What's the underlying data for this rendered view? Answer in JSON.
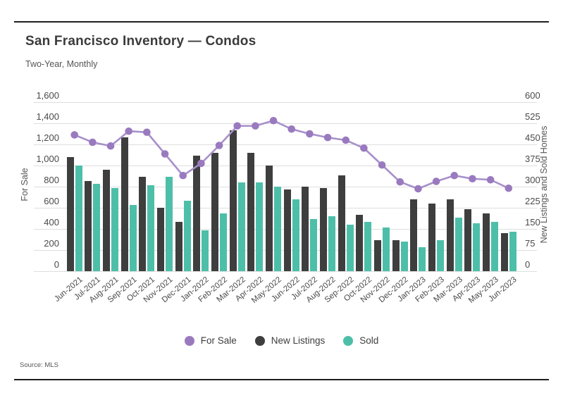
{
  "header": {
    "title": "San Francisco Inventory — Condos",
    "subtitle": "Two-Year, Monthly"
  },
  "footer": {
    "source": "Source: MLS"
  },
  "legend": [
    {
      "label": "For Sale",
      "color": "#9A7ABF"
    },
    {
      "label": "New Listings",
      "color": "#3E3E3E"
    },
    {
      "label": "Sold",
      "color": "#4DBFA9"
    }
  ],
  "colors": {
    "line_stroke": "#A78FCB",
    "point_fill": "#9A7ABF",
    "new_listings_bar": "#3E3E3E",
    "sold_bar": "#4DBFA9",
    "gridline": "#DEDEDE",
    "rule": "#1F1F1F"
  },
  "chart_data": {
    "type": "bar",
    "subtype": "grouped bars + line overlay (dual axis)",
    "grid": true,
    "legend_position": "bottom",
    "categories": [
      "Jun-2021",
      "Jul-2021",
      "Aug-2021",
      "Sep-2021",
      "Oct-2021",
      "Nov-2021",
      "Dec-2021",
      "Jan-2022",
      "Feb-2022",
      "Mar-2022",
      "Apr-2022",
      "May-2022",
      "Jun-2022",
      "Jul-2022",
      "Aug-2022",
      "Sep-2022",
      "Oct-2022",
      "Nov-2022",
      "Dec-2022",
      "Jan-2023",
      "Feb-2023",
      "Mar-2023",
      "Apr-2023",
      "May-2023",
      "Jun-2023"
    ],
    "series": [
      {
        "name": "For Sale",
        "type": "line",
        "axis": "left",
        "values": [
          1290,
          1220,
          1185,
          1325,
          1315,
          1110,
          905,
          1020,
          1190,
          1375,
          1375,
          1425,
          1345,
          1300,
          1265,
          1240,
          1165,
          1005,
          845,
          780,
          850,
          905,
          875,
          865,
          785
        ]
      },
      {
        "name": "New Listings",
        "type": "bar",
        "axis": "right",
        "values": [
          405,
          320,
          360,
          475,
          335,
          225,
          175,
          410,
          420,
          500,
          420,
          375,
          290,
          300,
          295,
          340,
          200,
          110,
          110,
          255,
          240,
          255,
          220,
          205,
          135
        ]
      },
      {
        "name": "Sold",
        "type": "bar",
        "axis": "right",
        "values": [
          375,
          310,
          295,
          235,
          305,
          335,
          250,
          145,
          205,
          315,
          315,
          300,
          255,
          185,
          195,
          165,
          175,
          155,
          105,
          85,
          110,
          190,
          170,
          175,
          140
        ]
      }
    ],
    "left_axis": {
      "label": "For Sale",
      "min": 0,
      "max": 1600,
      "step": 200,
      "tick_labels": [
        "0",
        "200",
        "400",
        "600",
        "800",
        "1,000",
        "1,200",
        "1,400",
        "1,600"
      ]
    },
    "right_axis": {
      "label": "New Listings and Sold Homes",
      "min": 0,
      "max": 600,
      "step": 75,
      "tick_labels": [
        "0",
        "75",
        "150",
        "225",
        "300",
        "375",
        "450",
        "525",
        "600"
      ]
    }
  }
}
